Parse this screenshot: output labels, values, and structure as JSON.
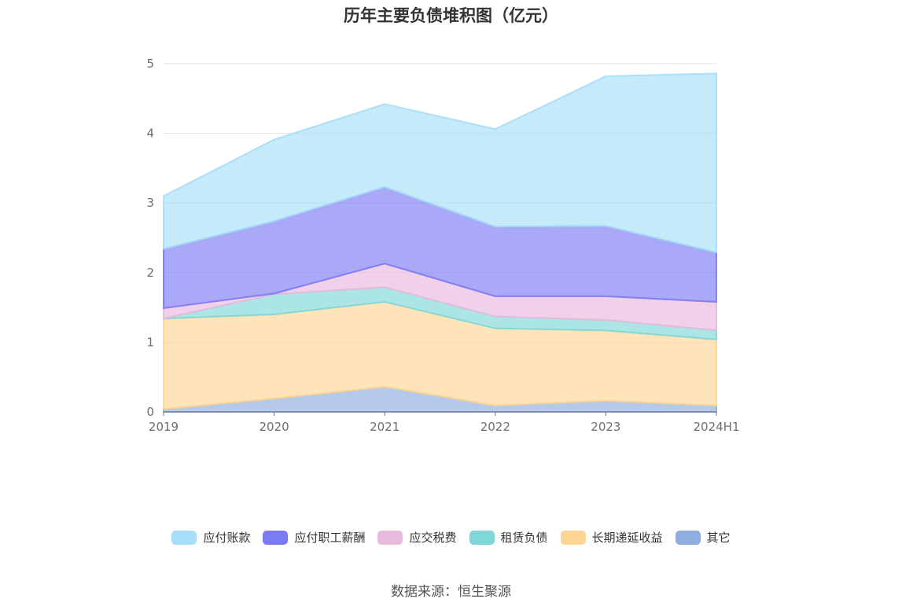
{
  "chart_data": {
    "type": "area",
    "stacked": true,
    "title": "历年主要负债堆积图（亿元）",
    "xlabel": "",
    "ylabel": "",
    "categories": [
      "2019",
      "2020",
      "2021",
      "2022",
      "2023",
      "2024H1"
    ],
    "ylim": [
      0,
      5
    ],
    "yticks": [
      0,
      1,
      2,
      3,
      4,
      5
    ],
    "grid": true,
    "legend_position": "bottom",
    "series": [
      {
        "name": "其它",
        "color": "#8eaedf",
        "values": [
          0.04,
          0.19,
          0.36,
          0.09,
          0.16,
          0.09
        ]
      },
      {
        "name": "长期递延收益",
        "color": "#fed592",
        "values": [
          1.3,
          1.21,
          1.22,
          1.11,
          1.01,
          0.95
        ]
      },
      {
        "name": "租赁负债",
        "color": "#7fd7d8",
        "values": [
          0.0,
          0.29,
          0.21,
          0.17,
          0.15,
          0.13
        ]
      },
      {
        "name": "应交税费",
        "color": "#e8b9dd",
        "values": [
          0.15,
          0.01,
          0.34,
          0.29,
          0.34,
          0.41
        ]
      },
      {
        "name": "应付职工薪酬",
        "color": "#7b7bf5",
        "values": [
          0.85,
          1.04,
          1.1,
          1.0,
          1.01,
          0.71
        ]
      },
      {
        "name": "应付账款",
        "color": "#a6def8",
        "values": [
          0.76,
          1.17,
          1.19,
          1.4,
          2.15,
          2.57
        ]
      }
    ]
  },
  "legend_order": [
    "应付账款",
    "应付职工薪酬",
    "应交税费",
    "租赁负债",
    "长期递延收益",
    "其它"
  ],
  "source": "数据来源：恒生聚源"
}
